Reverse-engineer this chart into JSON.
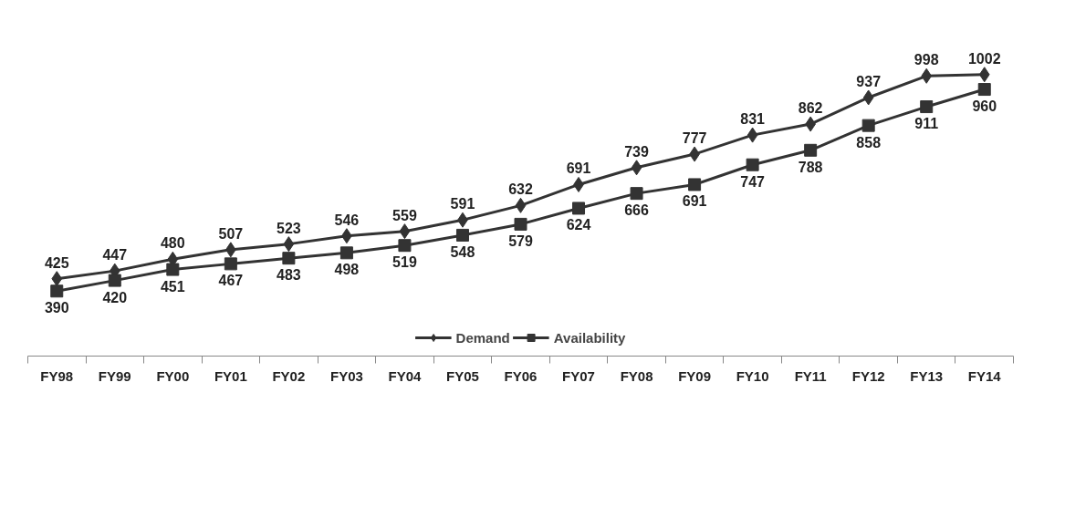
{
  "chart_data": {
    "type": "line",
    "categories": [
      "FY98",
      "FY99",
      "FY00",
      "FY01",
      "FY02",
      "FY03",
      "FY04",
      "FY05",
      "FY06",
      "FY07",
      "FY08",
      "FY09",
      "FY10",
      "FY11",
      "FY12",
      "FY13",
      "FY14"
    ],
    "series": [
      {
        "name": "Demand",
        "color": "#333333",
        "marker": "diamond",
        "values": [
          425,
          447,
          480,
          507,
          523,
          546,
          559,
          591,
          632,
          691,
          739,
          777,
          831,
          862,
          937,
          998,
          1002
        ]
      },
      {
        "name": "Availability",
        "color": "#333333",
        "marker": "square",
        "values": [
          390,
          420,
          451,
          467,
          483,
          498,
          519,
          548,
          579,
          624,
          666,
          691,
          747,
          788,
          858,
          911,
          960
        ]
      }
    ],
    "data_labels": true,
    "legend": "bottom",
    "grid": false,
    "tick_labels": "x",
    "line_style": "solid"
  }
}
